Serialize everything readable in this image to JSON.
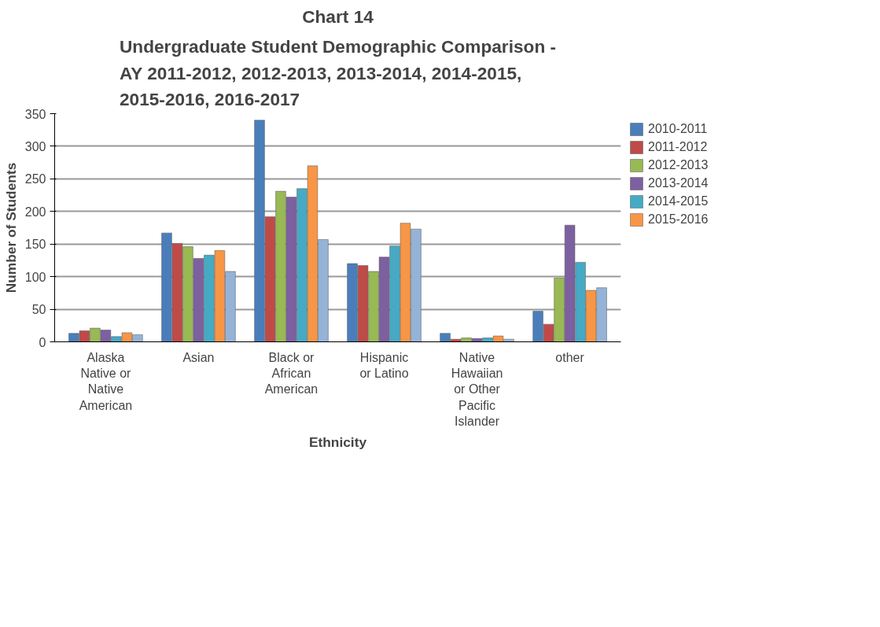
{
  "chart_data": {
    "type": "bar",
    "title": "Chart 14",
    "subtitle": "Undergraduate Student Demographic Comparison - AY 2011-2012, 2012-2013, 2013-2014, 2014-2015, 2015-2016, 2016-2017",
    "xlabel": "Ethnicity",
    "ylabel": "Number of Students",
    "categories": [
      "Alaska Native or Native American",
      "Asian",
      "Black or African American",
      "Hispanic or Latino",
      "Native Hawaiian or Other Pacific Islander",
      "other"
    ],
    "series": [
      {
        "name": "2010-2011",
        "color": "#4a7ebb",
        "values": [
          13,
          167,
          340,
          120,
          13,
          47
        ]
      },
      {
        "name": "2011-2012",
        "color": "#be4b48",
        "values": [
          17,
          151,
          192,
          117,
          4,
          27
        ]
      },
      {
        "name": "2012-2013",
        "color": "#98b954",
        "values": [
          21,
          146,
          231,
          108,
          6,
          98
        ]
      },
      {
        "name": "2013-2014",
        "color": "#7d60a0",
        "values": [
          18,
          128,
          222,
          130,
          5,
          179
        ]
      },
      {
        "name": "2014-2015",
        "color": "#46aac5",
        "values": [
          8,
          133,
          235,
          147,
          6,
          122
        ]
      },
      {
        "name": "2015-2016",
        "color": "#f79646",
        "values": [
          14,
          140,
          270,
          182,
          9,
          79
        ]
      },
      {
        "color": "#95b3d7",
        "values": [
          11,
          108,
          157,
          173,
          4,
          83
        ]
      }
    ],
    "ylim": [
      0,
      350
    ],
    "yticks": [
      0,
      50,
      100,
      150,
      200,
      250,
      300,
      350
    ],
    "grid": "y",
    "legend": "right"
  }
}
